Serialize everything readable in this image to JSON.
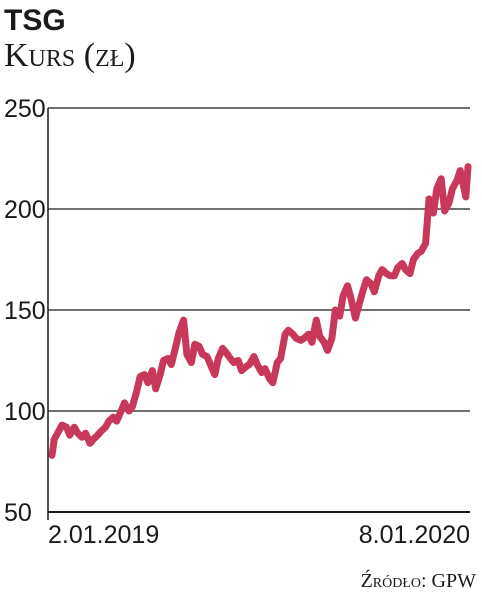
{
  "chart_data": {
    "type": "line",
    "title": "TSG",
    "subtitle": "Kurs (zł)",
    "source": "Źródło: GPW",
    "yticks": [
      50,
      100,
      150,
      200,
      250
    ],
    "ylim": [
      50,
      250
    ],
    "xtick_labels": [
      "2.01.2019",
      "8.01.2020"
    ],
    "grid": "horizontal",
    "color": "#c8385a",
    "series": [
      {
        "x": [
          "2019-01-02",
          "2019-01-04",
          "2019-01-08",
          "2019-01-11",
          "2019-01-15",
          "2019-01-18",
          "2019-01-22",
          "2019-01-25",
          "2019-01-29",
          "2019-02-01",
          "2019-02-05",
          "2019-02-08",
          "2019-02-12",
          "2019-02-15",
          "2019-02-19",
          "2019-02-22",
          "2019-02-26",
          "2019-03-01",
          "2019-03-05",
          "2019-03-08",
          "2019-03-12",
          "2019-03-15",
          "2019-03-19",
          "2019-03-22",
          "2019-03-26",
          "2019-03-29",
          "2019-04-02",
          "2019-04-05",
          "2019-04-09",
          "2019-04-12",
          "2019-04-16",
          "2019-04-19",
          "2019-04-23",
          "2019-04-26",
          "2019-04-30",
          "2019-05-03",
          "2019-05-07",
          "2019-05-10",
          "2019-05-14",
          "2019-05-17",
          "2019-05-21",
          "2019-05-24",
          "2019-05-28",
          "2019-05-31",
          "2019-06-04",
          "2019-06-07",
          "2019-06-11",
          "2019-06-14",
          "2019-06-18",
          "2019-06-21",
          "2019-06-25",
          "2019-06-28",
          "2019-07-02",
          "2019-07-05",
          "2019-07-09",
          "2019-07-12",
          "2019-07-16",
          "2019-07-19",
          "2019-07-23",
          "2019-07-26",
          "2019-07-30",
          "2019-08-02",
          "2019-08-06",
          "2019-08-09",
          "2019-08-13",
          "2019-08-16",
          "2019-08-20",
          "2019-08-23",
          "2019-08-27",
          "2019-08-30",
          "2019-09-03",
          "2019-09-06",
          "2019-09-10",
          "2019-09-13",
          "2019-09-17",
          "2019-09-20",
          "2019-09-24",
          "2019-09-27",
          "2019-10-01",
          "2019-10-04",
          "2019-10-08",
          "2019-10-11",
          "2019-10-15",
          "2019-10-18",
          "2019-10-22",
          "2019-10-25",
          "2019-10-29",
          "2019-11-01",
          "2019-11-05",
          "2019-11-08",
          "2019-11-12",
          "2019-11-15",
          "2019-11-19",
          "2019-11-22",
          "2019-11-26",
          "2019-11-29",
          "2019-12-03",
          "2019-12-06",
          "2019-12-10",
          "2019-12-13",
          "2019-12-17",
          "2019-12-20",
          "2019-12-24",
          "2019-12-27",
          "2019-12-31",
          "2020-01-03",
          "2020-01-08",
          "2020-01-10"
        ],
        "values": [
          78,
          86,
          90,
          93,
          92,
          88,
          92,
          89,
          87,
          89,
          84,
          86,
          88,
          90,
          92,
          95,
          97,
          95,
          100,
          104,
          100,
          102,
          110,
          117,
          118,
          114,
          120,
          111,
          118,
          125,
          126,
          123,
          132,
          139,
          145,
          128,
          124,
          133,
          132,
          128,
          127,
          123,
          118,
          126,
          131,
          129,
          126,
          124,
          125,
          120,
          122,
          123,
          127,
          123,
          119,
          121,
          116,
          114,
          124,
          126,
          138,
          140,
          138,
          136,
          135,
          136,
          138,
          134,
          145,
          137,
          134,
          130,
          136,
          150,
          147,
          157,
          162,
          156,
          146,
          152,
          160,
          165,
          163,
          159,
          167,
          170,
          168,
          167,
          167,
          171,
          173,
          170,
          168,
          175,
          178,
          179,
          183,
          205,
          198,
          210,
          215,
          199,
          203,
          210,
          214,
          219,
          206,
          221
        ]
      }
    ]
  }
}
